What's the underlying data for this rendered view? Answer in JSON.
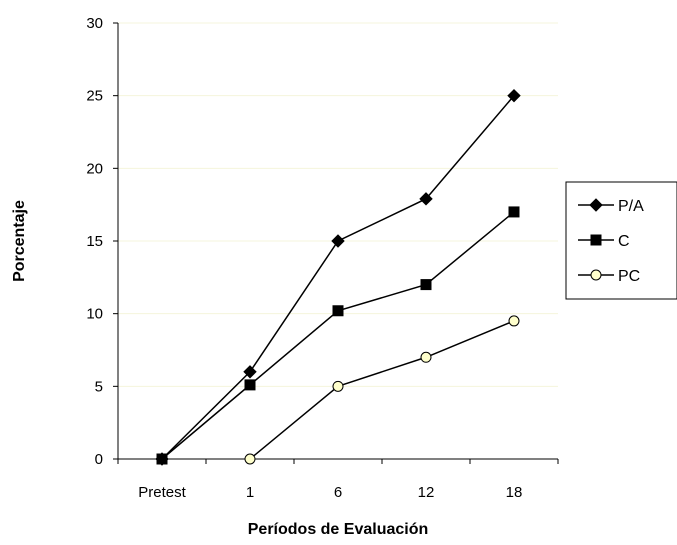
{
  "chart_data": {
    "type": "line",
    "xlabel": "Períodos de Evaluación",
    "ylabel": "Porcentaje",
    "categories": [
      "Pretest",
      "1",
      "6",
      "12",
      "18"
    ],
    "ylim": [
      0,
      30
    ],
    "yticks": [
      0,
      5,
      10,
      15,
      20,
      25,
      30
    ],
    "grid": "horizontal",
    "legend_position": "right",
    "series": [
      {
        "name": "P/A",
        "marker": "diamond",
        "values": [
          0,
          6,
          15,
          17.9,
          25
        ]
      },
      {
        "name": "C",
        "marker": "square",
        "values": [
          0,
          5.1,
          10.2,
          12,
          17
        ]
      },
      {
        "name": "PC",
        "marker": "circle-open",
        "values": [
          null,
          0,
          5,
          7,
          9.5
        ]
      }
    ],
    "colors": {
      "line": "#000000",
      "grid": "#f5f5dc",
      "open_marker_fill": "#ffffcc"
    }
  }
}
